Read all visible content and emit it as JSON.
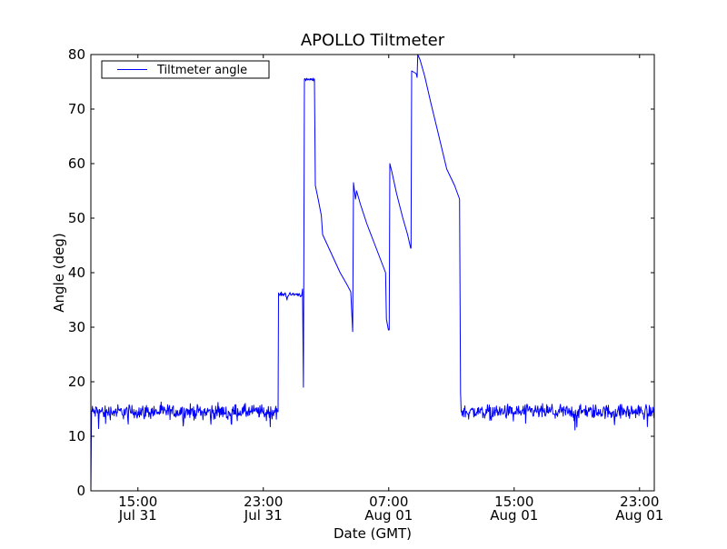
{
  "chart_data": {
    "type": "line",
    "title": "APOLLO Tiltmeter",
    "xlabel": "Date (GMT)",
    "ylabel": "Angle (deg)",
    "x_units": "hours since Jul 31 00:00 GMT",
    "xlim": [
      12.0,
      47.94
    ],
    "ylim": [
      0,
      80
    ],
    "grid": false,
    "legend": {
      "placement": "top-left",
      "entries": [
        "Tiltmeter angle"
      ]
    },
    "color": "#0000ff",
    "yticks": [
      0,
      10,
      20,
      30,
      40,
      50,
      60,
      70,
      80
    ],
    "xticks": [
      {
        "value": 15,
        "time": "15:00",
        "date": "Jul 31"
      },
      {
        "value": 23,
        "time": "23:00",
        "date": "Jul 31"
      },
      {
        "value": 31,
        "time": "07:00",
        "date": "Aug 01"
      },
      {
        "value": 39,
        "time": "15:00",
        "date": "Aug 01"
      },
      {
        "value": 47,
        "time": "23:00",
        "date": "Aug 01"
      }
    ],
    "baseline_noise_amplitude": 1.0,
    "series": [
      {
        "name": "Tiltmeter angle",
        "segments": [
          {
            "kind": "line",
            "points": [
              [
                12.0,
                0
              ],
              [
                12.04,
                14.5
              ]
            ]
          },
          {
            "kind": "noisy",
            "from": 12.04,
            "to": 23.94,
            "level": 14.5
          },
          {
            "kind": "line",
            "points": [
              [
                23.94,
                14.5
              ],
              [
                23.97,
                36.3
              ]
            ]
          },
          {
            "kind": "noisy",
            "from": 23.97,
            "to": 25.5,
            "level": 36.0,
            "noise": 0.35
          },
          {
            "kind": "line",
            "points": [
              [
                25.5,
                37
              ],
              [
                25.56,
                19
              ],
              [
                25.62,
                75.5
              ]
            ]
          },
          {
            "kind": "noisy",
            "from": 25.62,
            "to": 26.26,
            "level": 75.4,
            "noise": 0.2
          },
          {
            "kind": "line",
            "points": [
              [
                26.26,
                75.5
              ],
              [
                26.32,
                56
              ],
              [
                26.5,
                53.5
              ],
              [
                26.7,
                50.5
              ],
              [
                26.78,
                47
              ],
              [
                27.1,
                45
              ],
              [
                27.5,
                42.5
              ],
              [
                27.9,
                40
              ],
              [
                28.3,
                38
              ],
              [
                28.58,
                36.5
              ],
              [
                28.7,
                29.2
              ]
            ]
          },
          {
            "kind": "line",
            "points": [
              [
                28.75,
                56.5
              ],
              [
                28.88,
                53.5
              ],
              [
                28.95,
                55
              ],
              [
                29.2,
                52.5
              ],
              [
                29.6,
                49
              ],
              [
                30.0,
                46
              ],
              [
                30.4,
                43
              ],
              [
                30.8,
                40
              ],
              [
                30.85,
                31.5
              ],
              [
                30.98,
                29.5
              ]
            ]
          },
          {
            "kind": "line",
            "points": [
              [
                31.03,
                29.5
              ],
              [
                31.07,
                60
              ],
              [
                31.2,
                58.5
              ],
              [
                31.5,
                54.5
              ],
              [
                31.9,
                50
              ],
              [
                32.2,
                47
              ],
              [
                32.4,
                44.5
              ]
            ]
          },
          {
            "kind": "line",
            "points": [
              [
                32.42,
                44.5
              ],
              [
                32.46,
                77
              ],
              [
                32.75,
                76.5
              ],
              [
                32.81,
                75.8
              ],
              [
                32.85,
                80
              ],
              [
                33.0,
                79
              ],
              [
                33.3,
                76
              ],
              [
                33.7,
                71
              ],
              [
                34.2,
                65
              ],
              [
                34.7,
                59
              ],
              [
                35.2,
                56
              ],
              [
                35.52,
                53.5
              ],
              [
                35.58,
                18
              ],
              [
                35.62,
                14.5
              ]
            ]
          },
          {
            "kind": "noisy",
            "from": 35.62,
            "to": 47.94,
            "level": 14.5
          }
        ]
      }
    ]
  }
}
